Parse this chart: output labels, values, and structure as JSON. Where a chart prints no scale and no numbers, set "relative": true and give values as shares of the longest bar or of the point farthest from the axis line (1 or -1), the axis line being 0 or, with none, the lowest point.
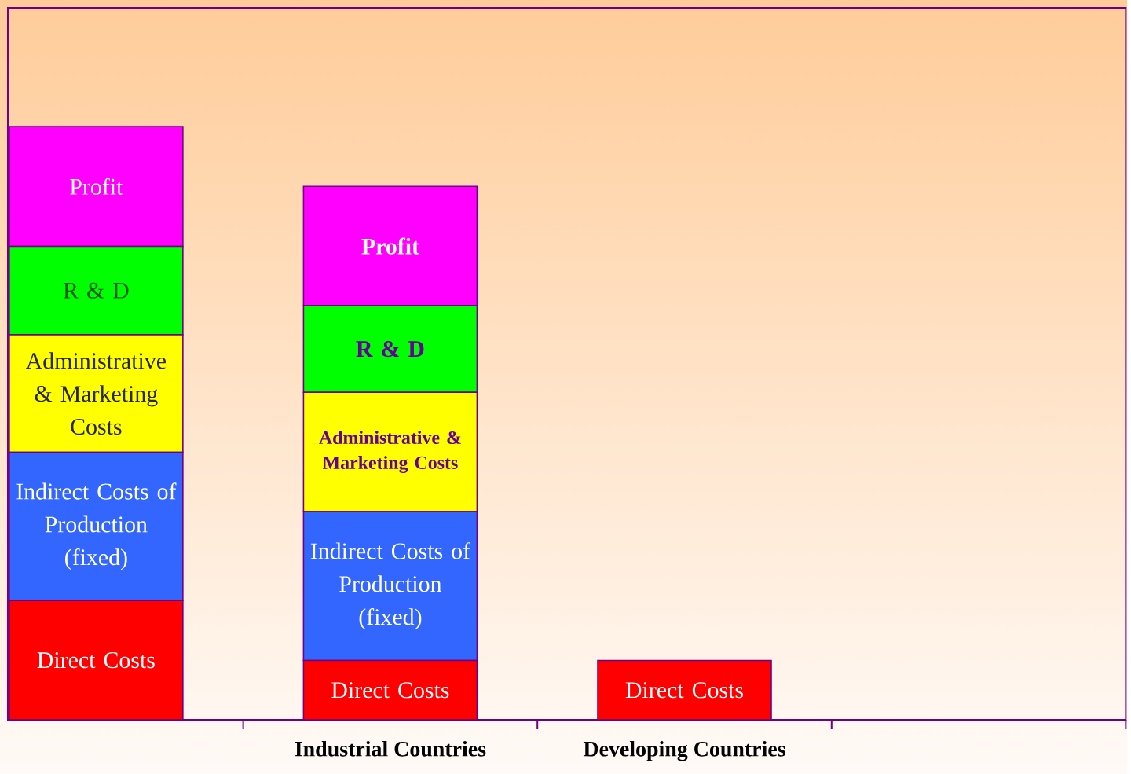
{
  "chart_data": {
    "type": "bar",
    "stacked": true,
    "relative": true,
    "categories": [
      null,
      "Industrial Countries",
      "Developing Countries",
      null
    ],
    "series": [
      {
        "name": "Direct Costs",
        "color": "#ff0000",
        "values": [
          0.201,
          0.1,
          0.1,
          null
        ]
      },
      {
        "name": "Indirect Costs of Production (fixed)",
        "color": "#3366ff",
        "values": [
          0.25,
          0.251,
          null,
          null
        ]
      },
      {
        "name": "Administrative & Marketing Costs",
        "color": "#ffff00",
        "values": [
          0.198,
          0.201,
          null,
          null
        ]
      },
      {
        "name": "R & D",
        "color": "#00ff00",
        "values": [
          0.149,
          0.146,
          null,
          null
        ]
      },
      {
        "name": "Profit",
        "color": "#ff00ff",
        "values": [
          0.202,
          0.201,
          null,
          null
        ]
      }
    ]
  }
}
